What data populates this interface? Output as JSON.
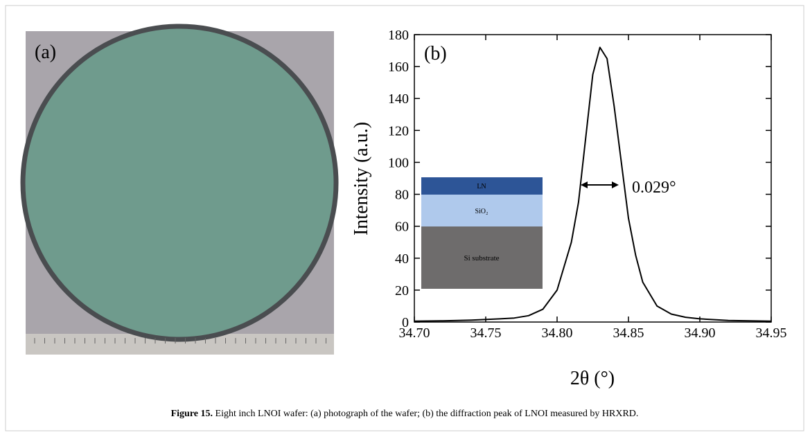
{
  "panel_a": {
    "label": "(a)"
  },
  "chart_data": {
    "type": "line",
    "panel_label": "(b)",
    "x_label": "2θ (°)",
    "y_label": "Intensity (a.u.)",
    "annotation": "0.029°",
    "inset_layers": [
      "LN",
      "SiO₂",
      "Si substrate"
    ],
    "x": [
      34.7,
      34.72,
      34.74,
      34.76,
      34.77,
      34.78,
      34.79,
      34.8,
      34.81,
      34.815,
      34.82,
      34.825,
      34.83,
      34.835,
      34.84,
      34.845,
      34.85,
      34.855,
      34.86,
      34.87,
      34.88,
      34.89,
      34.9,
      34.92,
      34.95
    ],
    "series": [
      {
        "color": "#000000",
        "values": [
          0.5,
          0.8,
          1.2,
          2,
          2.5,
          4,
          8,
          20,
          50,
          75,
          115,
          155,
          172,
          165,
          135,
          100,
          65,
          42,
          25,
          10,
          5,
          3,
          2,
          1,
          0.5
        ]
      }
    ],
    "xlim": [
      34.7,
      34.95
    ],
    "xticks": [
      {
        "value": 34.7,
        "label": "34.70"
      },
      {
        "value": 34.75,
        "label": "34.75"
      },
      {
        "value": 34.8,
        "label": "34.80"
      },
      {
        "value": 34.85,
        "label": "34.85"
      },
      {
        "value": 34.9,
        "label": "34.90"
      },
      {
        "value": 34.95,
        "label": "34.95"
      }
    ],
    "ylim": [
      0,
      180
    ],
    "yticks": [
      0,
      20,
      40,
      60,
      80,
      100,
      120,
      140,
      160,
      180
    ]
  },
  "caption": {
    "label": "Figure 15.",
    "text": " Eight inch LNOI wafer: (a) photograph of the wafer; (b) the diffraction peak of LNOI measured by HRXRD."
  }
}
